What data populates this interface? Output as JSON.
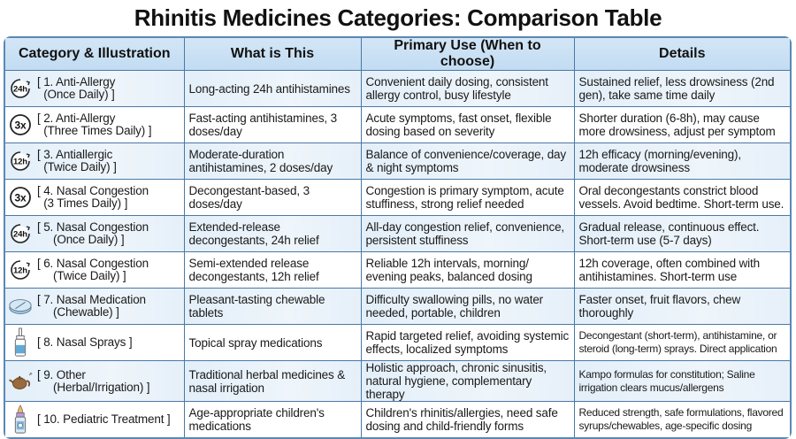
{
  "title": "Rhinitis Medicines Categories: Comparison Table",
  "headers": [
    "Category & Illustration",
    "What is This",
    "Primary Use (When to choose)",
    "Details"
  ],
  "rows": [
    {
      "icon": "clock-24h-icon",
      "icon_text": "24h",
      "category": "[ 1. Anti-Allergy\n  (Once Daily) ]",
      "what": "Long-acting 24h antihistamines",
      "use": "Convenient daily dosing, consistent allergy control, busy lifestyle",
      "details": "Sustained relief, less drowsiness (2nd gen), take same time daily"
    },
    {
      "icon": "three-times-icon",
      "icon_text": "3x",
      "category": "[ 2. Anti-Allergy\n  (Three Times Daily) ]",
      "what": "Fast-acting antihistamines, 3 doses/day",
      "use": "Acute symptoms, fast onset, flexible dosing based on severity",
      "details": "Shorter duration (6-8h), may cause more drowsiness, adjust per symptom"
    },
    {
      "icon": "clock-12h-icon",
      "icon_text": "12h",
      "category": "[ 3. Antiallergic\n  (Twice Daily) ]",
      "what": "Moderate-duration antihistamines, 2 doses/day",
      "use": "Balance of convenience/coverage, day & night symptoms",
      "details": "12h efficacy (morning/evening), moderate drowsiness"
    },
    {
      "icon": "three-times-icon",
      "icon_text": "3x",
      "category": "[ 4. Nasal Congestion\n  (3 Times Daily) ]",
      "what": "Decongestant-based, 3 doses/day",
      "use": "Congestion is primary symptom, acute stuffiness, strong relief needed",
      "details": "Oral decongestants constrict blood vessels. Avoid bedtime. Short-term use."
    },
    {
      "icon": "clock-24h-icon",
      "icon_text": "24h",
      "category": "[ 5. Nasal Congestion\n     (Once Daily) ]",
      "what": "Extended-release decongestants, 24h relief",
      "use": "All-day congestion relief, convenience, persistent stuffiness",
      "details": "Gradual release, continuous effect. Short-term use (5-7 days)"
    },
    {
      "icon": "clock-12h-icon",
      "icon_text": "12h",
      "category": "[ 6. Nasal Congestion\n     (Twice Daily) ]",
      "what": "Semi-extended release decongestants, 12h relief",
      "use": "Reliable 12h intervals, morning/ evening peaks, balanced dosing",
      "details": "12h coverage, often combined with antihistamines. Short-term use"
    },
    {
      "icon": "tablet-icon",
      "icon_text": "",
      "category": "[ 7. Nasal Medication\n     (Chewable) ]",
      "what": "Pleasant-tasting chewable tablets",
      "use": "Difficulty swallowing pills, no water needed, portable, children",
      "details": "Faster onset, fruit flavors, chew thoroughly"
    },
    {
      "icon": "nasal-spray-icon",
      "icon_text": "",
      "category": "[ 8. Nasal Sprays ]",
      "what": "Topical spray medications",
      "use": "Rapid targeted relief, avoiding systemic effects, localized symptoms",
      "details": "Decongestant (short-term), antihistamine, or steroid (long-term) sprays. Direct application",
      "small": true
    },
    {
      "icon": "teapot-icon",
      "icon_text": "",
      "category": "[ 9. Other\n     (Herbal/Irrigation) ]",
      "what": "Traditional herbal medicines & nasal irrigation",
      "use": "Holistic approach, chronic sinusitis, natural hygiene, complementary therapy",
      "details": "Kampo formulas for constitution; Saline irrigation clears mucus/allergens",
      "small": true
    },
    {
      "icon": "pediatric-bottle-icon",
      "icon_text": "",
      "category": "[ 10. Pediatric Treatment ]",
      "what": "Age-appropriate children's medications",
      "use": "Children's rhinitis/allergies, need safe dosing and child-friendly forms",
      "details": "Reduced strength, safe formulations, flavored syrups/chewables, age-specific dosing",
      "small": true
    }
  ],
  "colors": {
    "header_bg": "#c8e0f4",
    "border": "#4a78a6",
    "row_alt": "#e6f0f9"
  }
}
